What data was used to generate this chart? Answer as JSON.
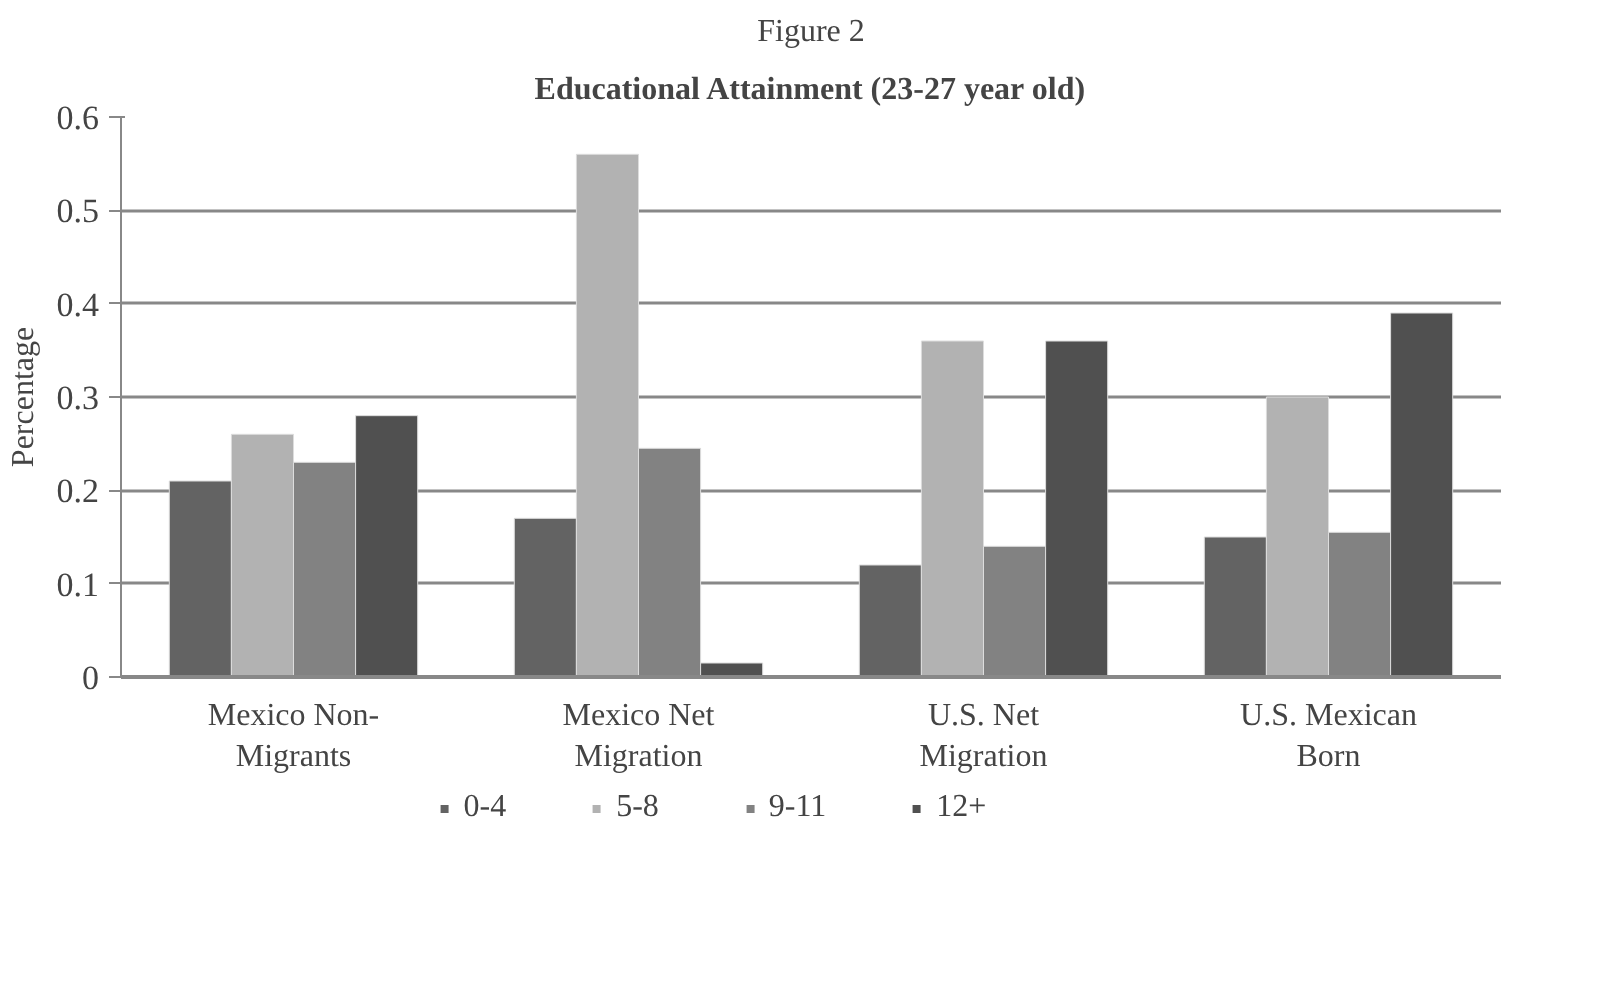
{
  "chart_data": {
    "type": "bar",
    "title": "Educational Attainment (23-27 year old)",
    "annotations": [
      "Figure 2"
    ],
    "ylabel": "Percentage",
    "categories": [
      "Mexico Non-Migrants",
      "Mexico Net Migration",
      "U.S. Net Migration",
      "U.S. Mexican Born"
    ],
    "series": [
      {
        "name": "0-4",
        "color": "#636363",
        "values": [
          0.21,
          0.17,
          0.12,
          0.15
        ]
      },
      {
        "name": "5-8",
        "color": "#b2b2b2",
        "values": [
          0.26,
          0.56,
          0.36,
          0.3
        ]
      },
      {
        "name": "9-11",
        "color": "#828282",
        "values": [
          0.23,
          0.245,
          0.14,
          0.155
        ]
      },
      {
        "name": "12+",
        "color": "#505050",
        "values": [
          0.28,
          0.015,
          0.36,
          0.39
        ]
      }
    ],
    "ylim": [
      0,
      0.6
    ],
    "yticks": [
      0,
      0.1,
      0.2,
      0.3,
      0.4,
      0.5,
      0.6
    ],
    "grid": "y",
    "legend": "bottom"
  }
}
